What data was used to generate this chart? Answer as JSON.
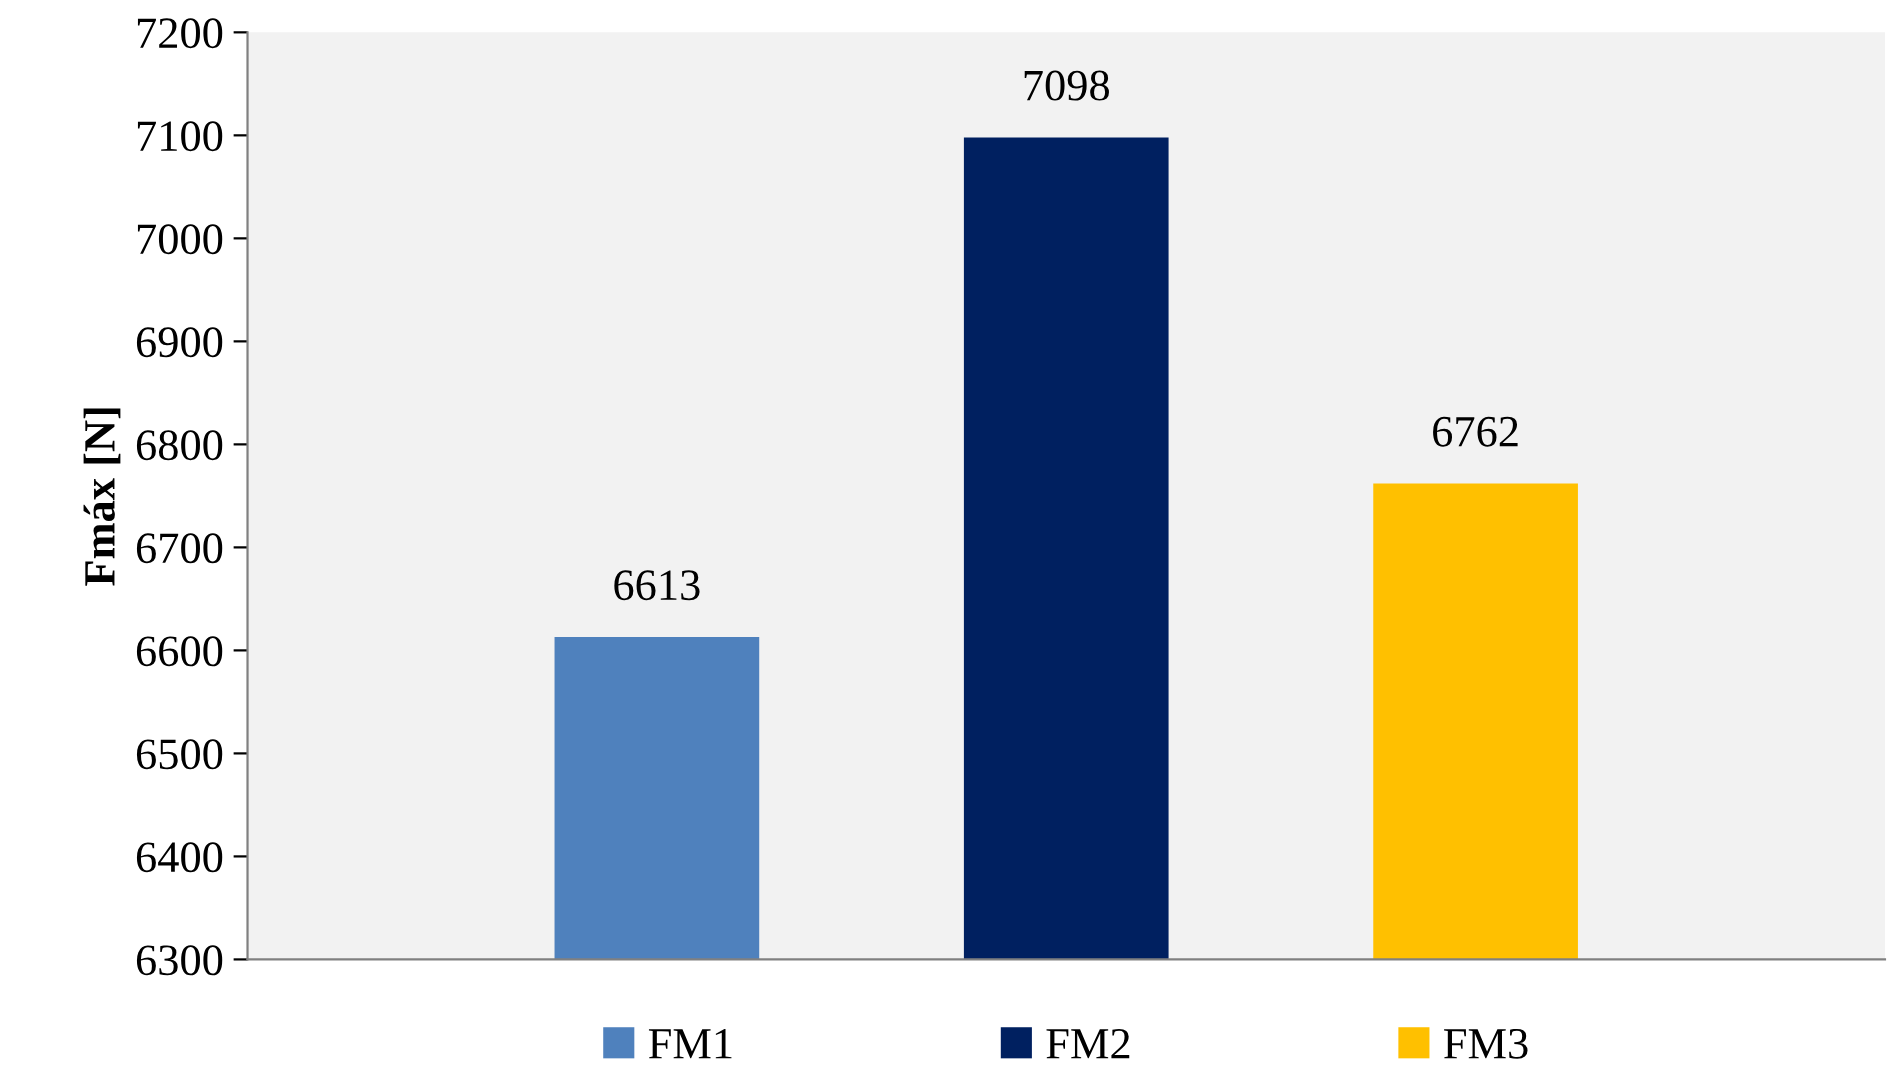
{
  "chart_data": {
    "type": "bar",
    "ylabel": "Fmáx [N]",
    "categories": [
      null
    ],
    "series": [
      {
        "name": "FM1",
        "color": "#4f81bd",
        "values": [
          6613
        ]
      },
      {
        "name": "FM2",
        "color": "#002060",
        "values": [
          7098
        ]
      },
      {
        "name": "FM3",
        "color": "#ffc000",
        "values": [
          6762
        ]
      }
    ],
    "ylim": [
      6300,
      7200
    ],
    "yticks": [
      6300,
      6400,
      6500,
      6600,
      6700,
      6800,
      6900,
      7000,
      7100,
      7200
    ],
    "data_labels": true,
    "legend": "bottom",
    "grid": false
  }
}
